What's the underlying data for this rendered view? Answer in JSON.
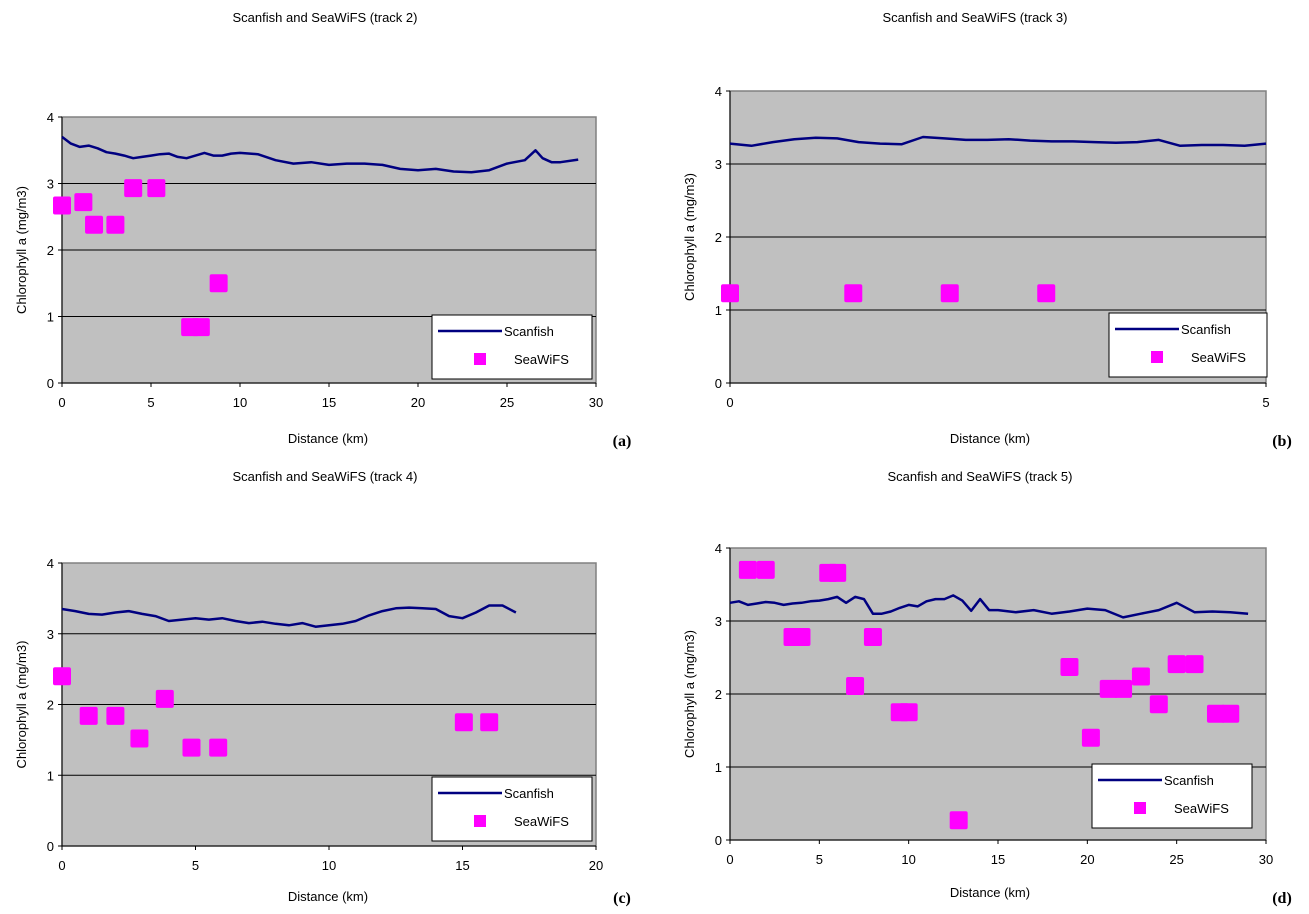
{
  "colors": {
    "plot_bg": "#c0c0c0",
    "line": "#000080",
    "marker": "#ff00ff",
    "grid": "#000000"
  },
  "legend": {
    "line_label": "Scanfish",
    "marker_label": "SeaWiFS"
  },
  "chart_data": [
    {
      "panel_label": "(a)",
      "type": "line",
      "title": "Scanfish and SeaWiFS (track 2)",
      "xlabel": "Distance (km)",
      "ylabel": "Chlorophyll a (mg/m3)",
      "xlim": [
        0,
        30
      ],
      "ylim": [
        0,
        4
      ],
      "xticks": [
        "0",
        "5",
        "10",
        "15",
        "20",
        "25",
        "30"
      ],
      "yticks": [
        "0",
        "1",
        "2",
        "3",
        "4"
      ],
      "series": [
        {
          "name": "Scanfish",
          "kind": "line",
          "x": [
            0,
            0.5,
            1,
            1.5,
            2,
            2.5,
            3,
            3.5,
            4,
            4.5,
            5,
            5.5,
            6,
            6.5,
            7,
            7.5,
            8,
            8.5,
            9,
            9.5,
            10,
            11,
            12,
            13,
            14,
            15,
            16,
            17,
            18,
            19,
            20,
            21,
            22,
            23,
            24,
            25,
            26,
            26.6,
            27,
            27.5,
            28,
            29
          ],
          "y": [
            3.7,
            3.6,
            3.55,
            3.57,
            3.53,
            3.47,
            3.45,
            3.42,
            3.38,
            3.4,
            3.42,
            3.44,
            3.45,
            3.4,
            3.38,
            3.42,
            3.46,
            3.42,
            3.42,
            3.45,
            3.46,
            3.44,
            3.35,
            3.3,
            3.32,
            3.28,
            3.3,
            3.3,
            3.28,
            3.22,
            3.2,
            3.22,
            3.18,
            3.17,
            3.2,
            3.3,
            3.35,
            3.5,
            3.38,
            3.32,
            3.32,
            3.36
          ]
        },
        {
          "name": "SeaWiFS",
          "kind": "marker",
          "x": [
            0,
            1.2,
            1.8,
            3,
            4,
            5.3,
            7.2,
            7.8,
            8.8
          ],
          "y": [
            2.67,
            2.72,
            2.38,
            2.38,
            2.93,
            2.93,
            0.84,
            0.84,
            1.5
          ]
        }
      ]
    },
    {
      "panel_label": "(b)",
      "type": "line",
      "title": "Scanfish and SeaWiFS (track 3)",
      "xlabel": "Distance (km)",
      "ylabel": "Chlorophyll a (mg/m3)",
      "xlim": [
        0,
        5
      ],
      "ylim": [
        0,
        4
      ],
      "xticks": [
        "0",
        "5"
      ],
      "yticks": [
        "0",
        "1",
        "2",
        "3",
        "4"
      ],
      "series": [
        {
          "name": "Scanfish",
          "kind": "line",
          "x": [
            0,
            0.2,
            0.4,
            0.6,
            0.8,
            1.0,
            1.2,
            1.4,
            1.6,
            1.8,
            2.0,
            2.2,
            2.4,
            2.6,
            2.8,
            3.0,
            3.2,
            3.4,
            3.6,
            3.8,
            4.0,
            4.2,
            4.4,
            4.6,
            4.8,
            5.0
          ],
          "y": [
            3.28,
            3.25,
            3.3,
            3.34,
            3.36,
            3.35,
            3.3,
            3.28,
            3.27,
            3.37,
            3.35,
            3.33,
            3.33,
            3.34,
            3.32,
            3.31,
            3.31,
            3.3,
            3.29,
            3.3,
            3.33,
            3.25,
            3.26,
            3.26,
            3.25,
            3.28
          ]
        },
        {
          "name": "SeaWiFS",
          "kind": "marker",
          "x": [
            0,
            1.15,
            2.05,
            2.95
          ],
          "y": [
            1.23,
            1.23,
            1.23,
            1.23
          ]
        }
      ]
    },
    {
      "panel_label": "(c)",
      "type": "line",
      "title": "Scanfish and SeaWiFS (track 4)",
      "xlabel": "Distance (km)",
      "ylabel": "Chlorophyll a (mg/m3)",
      "xlim": [
        0,
        20
      ],
      "ylim": [
        0,
        4
      ],
      "xticks": [
        "0",
        "5",
        "10",
        "15",
        "20"
      ],
      "yticks": [
        "0",
        "1",
        "2",
        "3",
        "4"
      ],
      "series": [
        {
          "name": "Scanfish",
          "kind": "line",
          "x": [
            0,
            0.5,
            1,
            1.5,
            2,
            2.5,
            3,
            3.5,
            4,
            4.5,
            5,
            5.5,
            6,
            6.5,
            7,
            7.5,
            8,
            8.5,
            9,
            9.5,
            10,
            10.5,
            11,
            11.5,
            12,
            12.5,
            13,
            13.5,
            14,
            14.5,
            15,
            15.5,
            16,
            16.5,
            17
          ],
          "y": [
            3.35,
            3.32,
            3.28,
            3.27,
            3.3,
            3.32,
            3.28,
            3.25,
            3.18,
            3.2,
            3.22,
            3.2,
            3.22,
            3.18,
            3.15,
            3.17,
            3.14,
            3.12,
            3.15,
            3.1,
            3.12,
            3.14,
            3.18,
            3.26,
            3.32,
            3.36,
            3.37,
            3.36,
            3.35,
            3.25,
            3.22,
            3.3,
            3.4,
            3.4,
            3.3
          ]
        },
        {
          "name": "SeaWiFS",
          "kind": "marker",
          "x": [
            0,
            1,
            2,
            2.9,
            3.85,
            4.85,
            5.85,
            15.05,
            16
          ],
          "y": [
            2.4,
            1.84,
            1.84,
            1.52,
            2.08,
            1.39,
            1.39,
            1.75,
            1.75
          ]
        }
      ]
    },
    {
      "panel_label": "(d)",
      "type": "line",
      "title": "Scanfish and SeaWiFS (track 5)",
      "xlabel": "Distance (km)",
      "ylabel": "Chlorophyll a (mg/m3)",
      "xlim": [
        0,
        30
      ],
      "ylim": [
        0,
        4
      ],
      "xticks": [
        "0",
        "5",
        "10",
        "15",
        "20",
        "25",
        "30"
      ],
      "yticks": [
        "0",
        "1",
        "2",
        "3",
        "4"
      ],
      "series": [
        {
          "name": "Scanfish",
          "kind": "line",
          "x": [
            0,
            0.5,
            1,
            1.5,
            2,
            2.5,
            3,
            3.5,
            4,
            4.5,
            5,
            5.5,
            6,
            6.5,
            7,
            7.5,
            8,
            8.5,
            9,
            9.5,
            10,
            10.5,
            11,
            11.5,
            12,
            12.5,
            13,
            13.5,
            14,
            14.5,
            15,
            16,
            17,
            18,
            19,
            20,
            21,
            22,
            23,
            24,
            25,
            26,
            27,
            28,
            29
          ],
          "y": [
            3.25,
            3.27,
            3.22,
            3.24,
            3.26,
            3.25,
            3.22,
            3.24,
            3.25,
            3.27,
            3.28,
            3.3,
            3.33,
            3.25,
            3.33,
            3.3,
            3.1,
            3.1,
            3.13,
            3.18,
            3.22,
            3.2,
            3.27,
            3.3,
            3.3,
            3.35,
            3.28,
            3.14,
            3.3,
            3.15,
            3.15,
            3.12,
            3.15,
            3.1,
            3.13,
            3.17,
            3.15,
            3.05,
            3.1,
            3.15,
            3.25,
            3.12,
            3.13,
            3.12,
            3.1
          ]
        },
        {
          "name": "SeaWiFS",
          "kind": "marker",
          "x": [
            1,
            2,
            3.5,
            4,
            5.5,
            6,
            7,
            8,
            9.5,
            10,
            12.8,
            19,
            20.2,
            21.2,
            22,
            23,
            24,
            25,
            26,
            27.2,
            28
          ],
          "y": [
            3.7,
            3.7,
            2.78,
            2.78,
            3.66,
            3.66,
            2.11,
            2.78,
            1.75,
            1.75,
            0.27,
            2.37,
            1.4,
            2.07,
            2.07,
            2.24,
            1.86,
            2.41,
            2.41,
            1.73,
            1.73
          ]
        }
      ]
    }
  ]
}
